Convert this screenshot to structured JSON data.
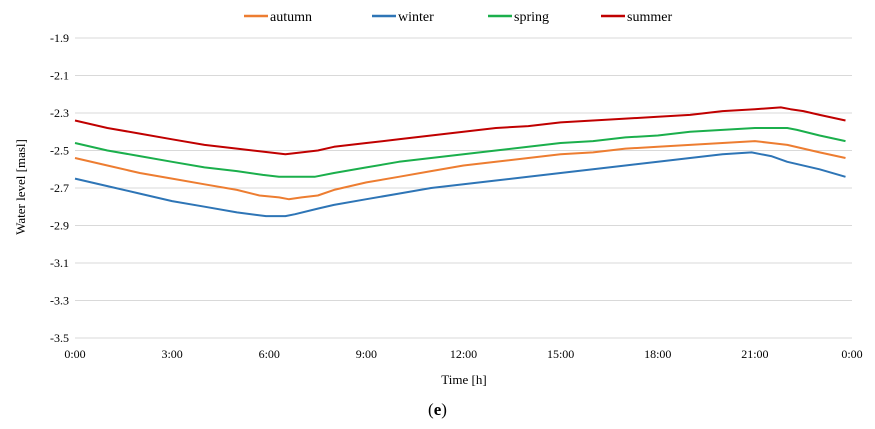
{
  "panel_label": {
    "open": "(",
    "letter": "e",
    "close": ")"
  },
  "chart_data": {
    "type": "line",
    "title": "",
    "xlabel": "Time [h]",
    "ylabel": "Water level [masl]",
    "ylim": [
      -3.5,
      -1.9
    ],
    "yticks": [
      -1.9,
      -2.1,
      -2.3,
      -2.5,
      -2.7,
      -2.9,
      -3.1,
      -3.3,
      -3.5
    ],
    "xlim": [
      0,
      24
    ],
    "xticks": [
      "0:00",
      "3:00",
      "6:00",
      "9:00",
      "12:00",
      "15:00",
      "18:00",
      "21:00",
      "0:00"
    ],
    "grid": "horizontal",
    "legend_position": "top",
    "series": [
      {
        "name": "autumn",
        "color": "#ED7D31",
        "x": [
          0,
          1,
          2,
          3,
          4,
          5,
          5.7,
          6.3,
          6.6,
          7,
          7.5,
          8,
          9,
          10,
          11,
          12,
          13,
          14,
          15,
          16,
          17,
          18,
          19,
          20,
          21,
          21.5,
          22,
          23,
          23.8
        ],
        "y": [
          -2.54,
          -2.58,
          -2.62,
          -2.65,
          -2.68,
          -2.71,
          -2.74,
          -2.75,
          -2.76,
          -2.75,
          -2.74,
          -2.71,
          -2.67,
          -2.64,
          -2.61,
          -2.58,
          -2.56,
          -2.54,
          -2.52,
          -2.51,
          -2.49,
          -2.48,
          -2.47,
          -2.46,
          -2.45,
          -2.46,
          -2.47,
          -2.51,
          -2.54
        ]
      },
      {
        "name": "winter",
        "color": "#2E75B6",
        "x": [
          0,
          1,
          2,
          3,
          4,
          5,
          5.9,
          6.5,
          6.8,
          7.5,
          8,
          9,
          10,
          11,
          12,
          13,
          14,
          15,
          16,
          17,
          18,
          19,
          20,
          20.9,
          21.2,
          21.5,
          22,
          23,
          23.8
        ],
        "y": [
          -2.65,
          -2.69,
          -2.73,
          -2.77,
          -2.8,
          -2.83,
          -2.85,
          -2.85,
          -2.84,
          -2.81,
          -2.79,
          -2.76,
          -2.73,
          -2.7,
          -2.68,
          -2.66,
          -2.64,
          -2.62,
          -2.6,
          -2.58,
          -2.56,
          -2.54,
          -2.52,
          -2.51,
          -2.52,
          -2.53,
          -2.56,
          -2.6,
          -2.64
        ]
      },
      {
        "name": "spring",
        "color": "#1BAF4C",
        "x": [
          0,
          1,
          2,
          3,
          4,
          5,
          5.8,
          6.3,
          7,
          7.4,
          8,
          9,
          10,
          11,
          12,
          13,
          14,
          15,
          16,
          17,
          18,
          19,
          20,
          21,
          22,
          22.3,
          23,
          23.8
        ],
        "y": [
          -2.46,
          -2.5,
          -2.53,
          -2.56,
          -2.59,
          -2.61,
          -2.63,
          -2.64,
          -2.64,
          -2.64,
          -2.62,
          -2.59,
          -2.56,
          -2.54,
          -2.52,
          -2.5,
          -2.48,
          -2.46,
          -2.45,
          -2.43,
          -2.42,
          -2.4,
          -2.39,
          -2.38,
          -2.38,
          -2.39,
          -2.42,
          -2.45
        ]
      },
      {
        "name": "summer",
        "color": "#C00000",
        "x": [
          0,
          1,
          2,
          3,
          4,
          5,
          6,
          6.5,
          7,
          7.5,
          8,
          9,
          10,
          11,
          12,
          13,
          14,
          15,
          16,
          17,
          18,
          19,
          20,
          21,
          21.8,
          22.1,
          22.5,
          23,
          23.8
        ],
        "y": [
          -2.34,
          -2.38,
          -2.41,
          -2.44,
          -2.47,
          -2.49,
          -2.51,
          -2.52,
          -2.51,
          -2.5,
          -2.48,
          -2.46,
          -2.44,
          -2.42,
          -2.4,
          -2.38,
          -2.37,
          -2.35,
          -2.34,
          -2.33,
          -2.32,
          -2.31,
          -2.29,
          -2.28,
          -2.27,
          -2.28,
          -2.29,
          -2.31,
          -2.34
        ]
      }
    ]
  }
}
